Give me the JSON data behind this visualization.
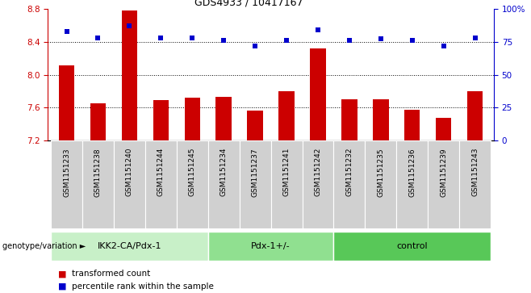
{
  "title": "GDS4933 / 10417167",
  "samples": [
    "GSM1151233",
    "GSM1151238",
    "GSM1151240",
    "GSM1151244",
    "GSM1151245",
    "GSM1151234",
    "GSM1151237",
    "GSM1151241",
    "GSM1151242",
    "GSM1151232",
    "GSM1151235",
    "GSM1151236",
    "GSM1151239",
    "GSM1151243"
  ],
  "red_values": [
    8.11,
    7.65,
    8.78,
    7.69,
    7.72,
    7.73,
    7.56,
    7.8,
    8.32,
    7.7,
    7.7,
    7.57,
    7.48,
    7.8
  ],
  "blue_values": [
    83,
    78,
    87,
    78,
    78,
    76,
    72,
    76,
    84,
    76,
    77,
    76,
    72,
    78
  ],
  "groups": [
    {
      "label": "IKK2-CA/Pdx-1",
      "start": 0,
      "end": 5,
      "color": "#c8f0c8"
    },
    {
      "label": "Pdx-1+/-",
      "start": 5,
      "end": 9,
      "color": "#90e090"
    },
    {
      "label": "control",
      "start": 9,
      "end": 14,
      "color": "#58c858"
    }
  ],
  "ylim_left": [
    7.2,
    8.8
  ],
  "ylim_right": [
    0,
    100
  ],
  "yticks_left": [
    7.2,
    7.6,
    8.0,
    8.4,
    8.8
  ],
  "yticks_right": [
    0,
    25,
    50,
    75,
    100
  ],
  "ytick_labels_right": [
    "0",
    "25",
    "50",
    "75",
    "100%"
  ],
  "hlines": [
    7.6,
    8.0,
    8.4
  ],
  "bar_color": "#cc0000",
  "dot_color": "#0000cc",
  "bar_width": 0.5,
  "legend_label_red": "transformed count",
  "legend_label_blue": "percentile rank within the sample",
  "group_label": "genotype/variation",
  "bg_color": "#d0d0d0",
  "plot_bg": "#ffffff",
  "group_colors": [
    "#c8f0c8",
    "#90e090",
    "#58c858"
  ]
}
